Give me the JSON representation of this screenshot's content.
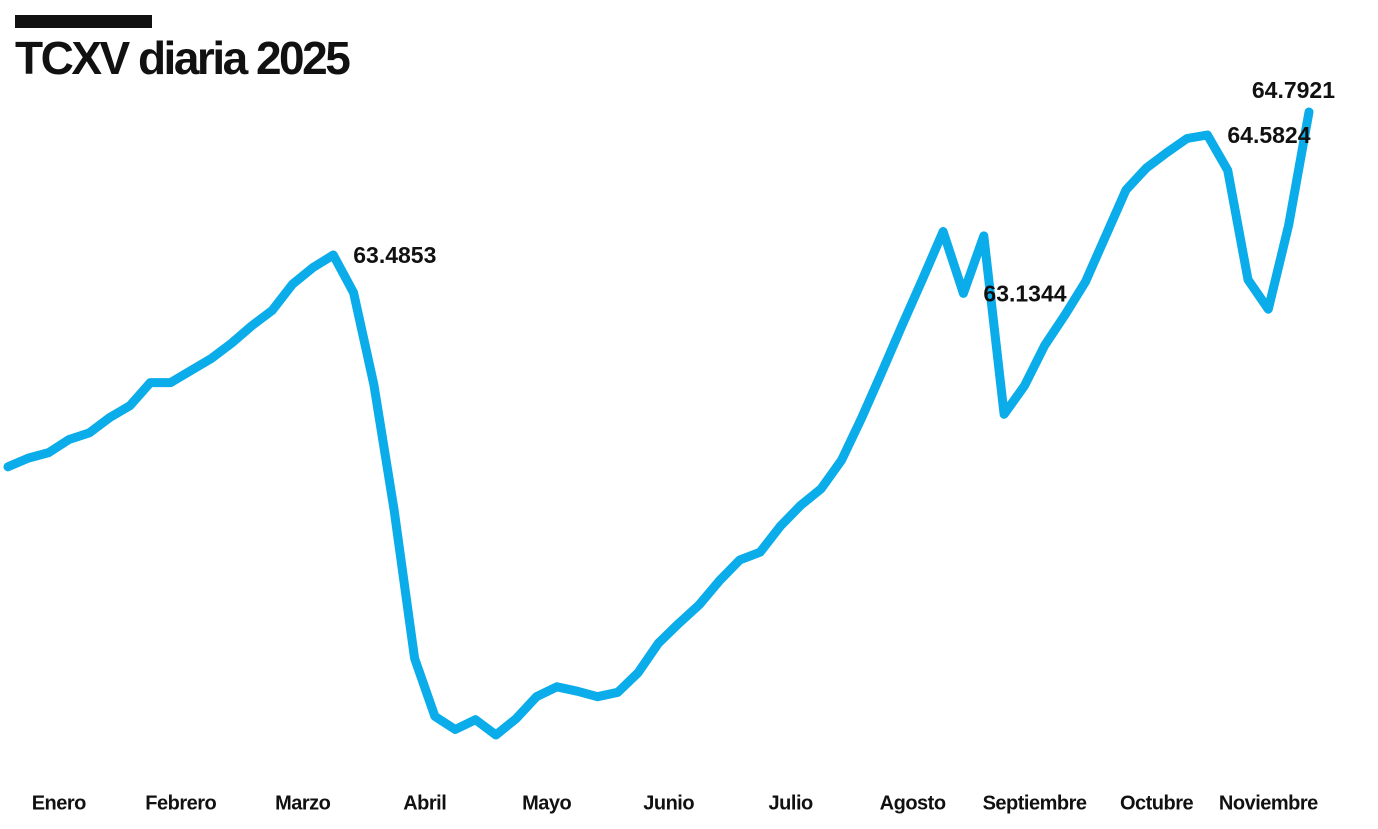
{
  "chart_data": {
    "type": "line",
    "title": "TCXV diaria 2025",
    "categories": [
      "Enero",
      null,
      null,
      null,
      null,
      null,
      "Febrero",
      null,
      null,
      null,
      null,
      null,
      "Marzo",
      null,
      null,
      null,
      null,
      null,
      "Abril",
      null,
      null,
      null,
      null,
      null,
      "Mayo",
      null,
      null,
      null,
      null,
      null,
      "Junio",
      null,
      null,
      null,
      null,
      null,
      "Julio",
      null,
      null,
      null,
      null,
      null,
      "Agosto",
      null,
      null,
      null,
      null,
      null,
      "Septiembre",
      null,
      null,
      null,
      null,
      null,
      "Octubre",
      null,
      null,
      null,
      null,
      null,
      "Noviembre",
      null,
      null,
      null,
      null
    ],
    "series": [
      {
        "name": "TCXV",
        "color": "#0aace9",
        "values": [
          61.55,
          61.63,
          61.68,
          61.8,
          61.86,
          62.0,
          62.11,
          62.32,
          62.32,
          62.43,
          62.54,
          62.68,
          62.84,
          62.98,
          63.22,
          63.37,
          63.4853,
          63.14,
          62.3,
          61.15,
          59.8,
          59.27,
          59.15,
          59.24,
          59.1,
          59.25,
          59.45,
          59.54,
          59.5,
          59.45,
          59.49,
          59.67,
          59.94,
          60.12,
          60.29,
          60.51,
          60.7,
          60.77,
          61.01,
          61.2,
          61.35,
          61.61,
          62.0,
          62.42,
          62.85,
          63.27,
          63.7,
          63.1344,
          63.66,
          62.03,
          62.29,
          62.66,
          62.94,
          63.24,
          63.66,
          64.08,
          64.28,
          64.42,
          64.55,
          64.5824,
          64.26,
          63.26,
          62.99,
          63.76,
          64.7921
        ],
        "value_labels": [
          null,
          null,
          null,
          null,
          null,
          null,
          null,
          null,
          null,
          null,
          null,
          null,
          null,
          null,
          null,
          null,
          "63.4853",
          null,
          null,
          null,
          null,
          null,
          null,
          null,
          null,
          null,
          null,
          null,
          null,
          null,
          null,
          null,
          null,
          null,
          null,
          null,
          null,
          null,
          null,
          null,
          null,
          null,
          null,
          null,
          null,
          null,
          null,
          "63.1344",
          null,
          null,
          null,
          null,
          null,
          null,
          null,
          null,
          null,
          null,
          null,
          "64.5824",
          null,
          null,
          null,
          null,
          "64.7921"
        ]
      }
    ],
    "grid": false
  }
}
